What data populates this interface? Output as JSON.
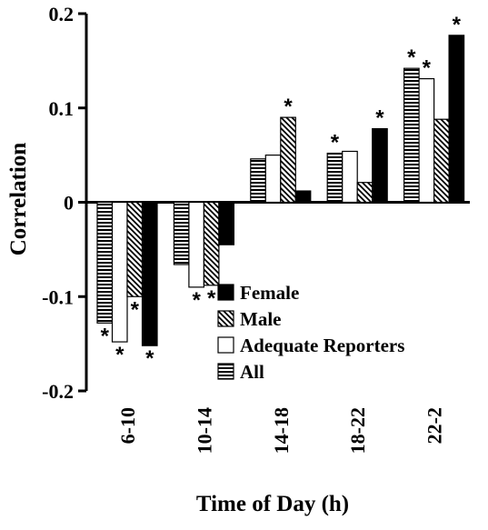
{
  "chart_data": {
    "type": "bar",
    "xlabel": "Time of Day (h)",
    "ylabel": "Correlation",
    "ylim": [
      -0.2,
      0.2
    ],
    "yticks": [
      0.2,
      0.1,
      0,
      -0.1,
      -0.2
    ],
    "ytick_labels": [
      "0.2",
      "0.1",
      "0",
      "-0.1",
      "-0.2"
    ],
    "categories": [
      "6-10",
      "10-14",
      "14-18",
      "18-22",
      "22-2"
    ],
    "series": [
      {
        "name": "All",
        "pattern": "horizontal-lines",
        "values": [
          -0.128,
          -0.066,
          0.046,
          0.052,
          0.142
        ],
        "significant": [
          true,
          false,
          false,
          true,
          true
        ]
      },
      {
        "name": "Adequate Reporters",
        "pattern": "white",
        "values": [
          -0.148,
          -0.09,
          0.05,
          0.054,
          0.131
        ],
        "significant": [
          true,
          true,
          false,
          false,
          true
        ]
      },
      {
        "name": "Male",
        "pattern": "diagonal-lines",
        "values": [
          -0.1,
          -0.088,
          0.09,
          0.021,
          0.088
        ],
        "significant": [
          true,
          true,
          true,
          false,
          false
        ]
      },
      {
        "name": "Female",
        "pattern": "solid-black",
        "values": [
          -0.152,
          -0.045,
          0.012,
          0.078,
          0.177
        ],
        "significant": [
          true,
          false,
          false,
          true,
          true
        ]
      }
    ],
    "legend": {
      "placement": "lower-right",
      "order": [
        "Female",
        "Male",
        "Adequate Reporters",
        "All"
      ]
    },
    "significance_marker": "*",
    "grid": false,
    "colors": {
      "bar_stroke": "#000000",
      "fill_dark": "#000000",
      "fill_light": "#ffffff"
    }
  }
}
